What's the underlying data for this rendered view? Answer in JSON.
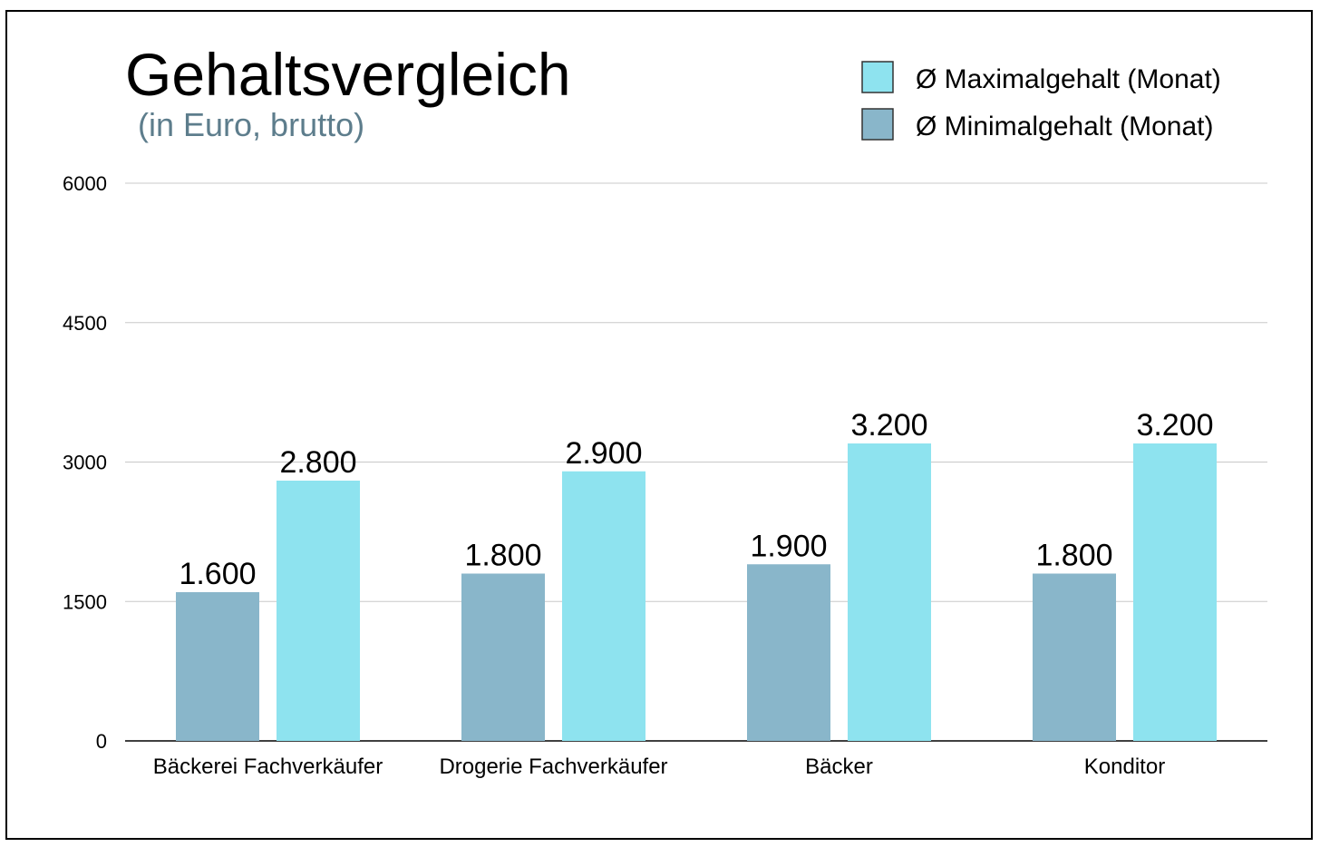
{
  "chart_data": {
    "type": "bar",
    "title": "Gehaltsvergleich",
    "subtitle": "(in Euro, brutto)",
    "xlabel": "",
    "ylabel": "",
    "ylim": [
      0,
      6000
    ],
    "yticks": [
      0,
      1500,
      3000,
      4500,
      6000
    ],
    "grid": true,
    "legend_position": "top-right",
    "categories": [
      "Bäckerei Fachverkäufer",
      "Drogerie Fachverkäufer",
      "Bäcker",
      "Konditor"
    ],
    "series": [
      {
        "name": "Ø Minimalgehalt (Monat)",
        "color": "#89b6ca",
        "values": [
          1600,
          1800,
          1900,
          1800
        ],
        "labels": [
          "1.600",
          "1.800",
          "1.900",
          "1.800"
        ]
      },
      {
        "name": "Ø Maximalgehalt (Monat)",
        "color": "#8ee3ef",
        "values": [
          2800,
          2900,
          3200,
          3200
        ],
        "labels": [
          "2.800",
          "2.900",
          "3.200",
          "3.200"
        ]
      }
    ],
    "legend_order": [
      1,
      0
    ]
  }
}
